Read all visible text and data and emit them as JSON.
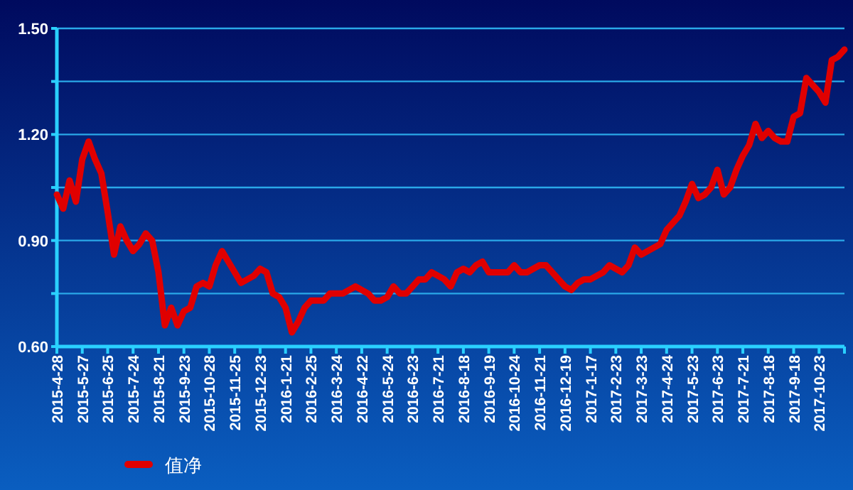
{
  "chart_data": {
    "type": "line",
    "categories": [
      "2015-4-28",
      null,
      null,
      null,
      "2015-5-27",
      null,
      null,
      null,
      "2015-6-25",
      null,
      null,
      null,
      "2015-7-24",
      null,
      null,
      null,
      "2015-8-21",
      null,
      null,
      null,
      "2015-9-23",
      null,
      null,
      null,
      "2015-10-28",
      null,
      null,
      null,
      "2015-11-25",
      null,
      null,
      null,
      "2015-12-23",
      null,
      null,
      null,
      "2016-1-21",
      null,
      null,
      null,
      "2016-2-25",
      null,
      null,
      null,
      "2016-3-24",
      null,
      null,
      null,
      "2016-4-22",
      null,
      null,
      null,
      "2016-5-24",
      null,
      null,
      null,
      "2016-6-23",
      null,
      null,
      null,
      "2016-7-21",
      null,
      null,
      null,
      "2016-8-18",
      null,
      null,
      null,
      "2016-9-19",
      null,
      null,
      null,
      "2016-10-24",
      null,
      null,
      null,
      "2016-11-21",
      null,
      null,
      null,
      "2016-12-19",
      null,
      null,
      null,
      "2017-1-17",
      null,
      null,
      null,
      "2017-2-23",
      null,
      null,
      null,
      "2017-3-23",
      null,
      null,
      null,
      "2017-4-24",
      null,
      null,
      null,
      "2017-5-23",
      null,
      null,
      null,
      "2017-6-23",
      null,
      null,
      null,
      "2017-7-21",
      null,
      null,
      null,
      "2017-8-18",
      null,
      null,
      null,
      "2017-9-18",
      null,
      null,
      null,
      "2017-10-23",
      null,
      null,
      null,
      null
    ],
    "series": [
      {
        "name": "值净",
        "color": "#e00000",
        "values": [
          1.03,
          0.99,
          1.07,
          1.01,
          1.13,
          1.18,
          1.13,
          1.09,
          0.98,
          0.86,
          0.94,
          0.9,
          0.87,
          0.89,
          0.92,
          0.9,
          0.81,
          0.66,
          0.71,
          0.66,
          0.7,
          0.71,
          0.77,
          0.78,
          0.77,
          0.83,
          0.87,
          0.84,
          0.81,
          0.78,
          0.79,
          0.8,
          0.82,
          0.81,
          0.75,
          0.74,
          0.71,
          0.64,
          0.67,
          0.71,
          0.73,
          0.73,
          0.73,
          0.75,
          0.75,
          0.75,
          0.76,
          0.77,
          0.76,
          0.75,
          0.73,
          0.73,
          0.74,
          0.77,
          0.75,
          0.75,
          0.77,
          0.79,
          0.79,
          0.81,
          0.8,
          0.79,
          0.77,
          0.81,
          0.82,
          0.81,
          0.83,
          0.84,
          0.81,
          0.81,
          0.81,
          0.81,
          0.83,
          0.81,
          0.81,
          0.82,
          0.83,
          0.83,
          0.81,
          0.79,
          0.77,
          0.76,
          0.78,
          0.79,
          0.79,
          0.8,
          0.81,
          0.83,
          0.82,
          0.81,
          0.83,
          0.88,
          0.86,
          0.87,
          0.88,
          0.89,
          0.93,
          0.95,
          0.97,
          1.01,
          1.06,
          1.02,
          1.03,
          1.05,
          1.1,
          1.03,
          1.05,
          1.1,
          1.14,
          1.17,
          1.23,
          1.19,
          1.21,
          1.19,
          1.18,
          1.18,
          1.25,
          1.26,
          1.36,
          1.34,
          1.32,
          1.29,
          1.41,
          1.42,
          1.44
        ]
      }
    ],
    "ylim": [
      0.6,
      1.5
    ],
    "yticks": [
      {
        "value": 0.6,
        "label": "0.60"
      },
      {
        "value": 0.75,
        "label": null
      },
      {
        "value": 0.9,
        "label": "0.90"
      },
      {
        "value": 1.05,
        "label": null
      },
      {
        "value": 1.2,
        "label": "1.20"
      },
      {
        "value": 1.35,
        "label": null
      },
      {
        "value": 1.5,
        "label": "1.50"
      }
    ],
    "grid": "y",
    "legend": "bottom left",
    "marker": "none",
    "line_style": "solid"
  }
}
